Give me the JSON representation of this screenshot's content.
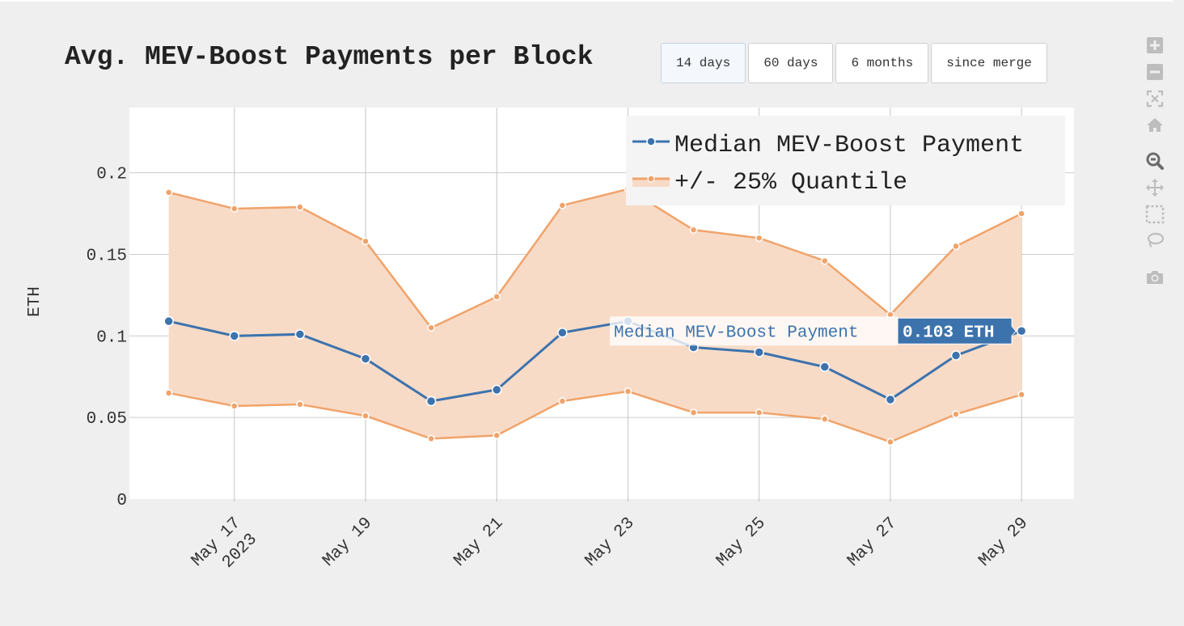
{
  "title": "Avg. MEV-Boost Payments per Block",
  "range_buttons": [
    {
      "label": "14 days",
      "active": true
    },
    {
      "label": "60 days",
      "active": false
    },
    {
      "label": "6 months",
      "active": false
    },
    {
      "label": "since merge",
      "active": false
    }
  ],
  "modebar": [
    "zoom-in-icon",
    "zoom-out-icon",
    "autoscale-icon",
    "reset-axes-icon",
    "zoom-icon",
    "pan-icon",
    "box-select-icon",
    "lasso-select-icon",
    "camera-icon"
  ],
  "chart_data": {
    "type": "line",
    "ylabel": "ETH",
    "xlabel": "",
    "ylim": [
      0,
      0.24
    ],
    "yticks": [
      0,
      0.05,
      0.1,
      0.15,
      0.2
    ],
    "ytick_labels": [
      "0",
      "0.05",
      "0.1",
      "0.15",
      "0.2"
    ],
    "x_range": [
      "2023-05-15.4",
      "2023-05-29.8"
    ],
    "xticks": [
      {
        "date": "2023-05-17",
        "label": "May 17",
        "sublabel": "2023"
      },
      {
        "date": "2023-05-19",
        "label": "May 19",
        "sublabel": ""
      },
      {
        "date": "2023-05-21",
        "label": "May 21",
        "sublabel": ""
      },
      {
        "date": "2023-05-23",
        "label": "May 23",
        "sublabel": ""
      },
      {
        "date": "2023-05-25",
        "label": "May 25",
        "sublabel": ""
      },
      {
        "date": "2023-05-27",
        "label": "May 27",
        "sublabel": ""
      },
      {
        "date": "2023-05-29",
        "label": "May 29",
        "sublabel": ""
      }
    ],
    "x": [
      "2023-05-16",
      "2023-05-17",
      "2023-05-18",
      "2023-05-19",
      "2023-05-20",
      "2023-05-21",
      "2023-05-22",
      "2023-05-23",
      "2023-05-24",
      "2023-05-25",
      "2023-05-26",
      "2023-05-27",
      "2023-05-28",
      "2023-05-29"
    ],
    "series": [
      {
        "name": "Median MEV-Boost Payment",
        "color": "#3d73ad",
        "values": [
          0.109,
          0.1,
          0.101,
          0.086,
          0.06,
          0.067,
          0.102,
          0.109,
          0.093,
          0.09,
          0.081,
          0.061,
          0.088,
          0.103
        ]
      },
      {
        "name": "+/- 25% Quantile",
        "color": "#f0a36a",
        "fill": "#f8dbc7",
        "upper": [
          0.188,
          0.178,
          0.179,
          0.158,
          0.105,
          0.124,
          0.18,
          0.19,
          0.165,
          0.16,
          0.146,
          0.113,
          0.155,
          0.175
        ],
        "lower": [
          0.065,
          0.057,
          0.058,
          0.051,
          0.037,
          0.039,
          0.06,
          0.066,
          0.053,
          0.053,
          0.049,
          0.035,
          0.052,
          0.064
        ]
      }
    ],
    "legend_position": "top-right",
    "grid": true,
    "hover": {
      "series_label": "Median MEV-Boost Payment",
      "value_label": "0.103 ETH",
      "index": 13
    }
  }
}
